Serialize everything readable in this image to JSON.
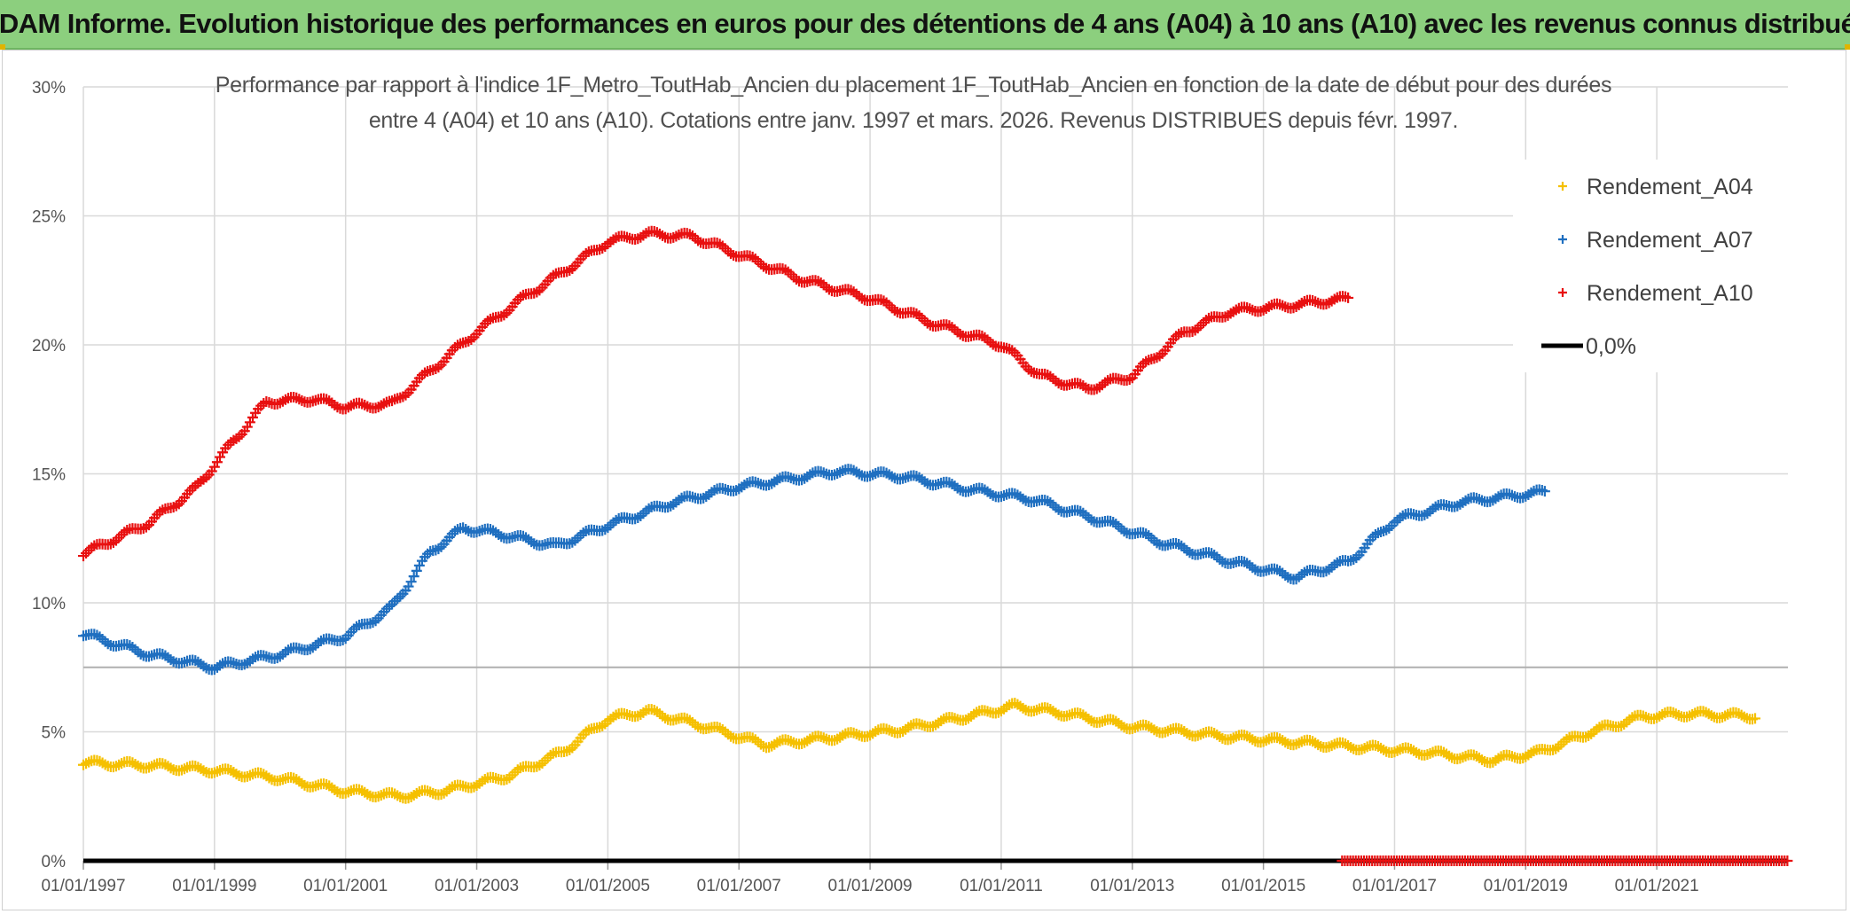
{
  "banner": {
    "title": "ADAM Informe. Evolution historique des performances en euros pour des détentions de 4 ans (A04) à 10 ans (A10) avec les revenus connus distribués"
  },
  "chart_data": {
    "type": "scatter",
    "title_line1": "Performance par rapport à l'indice 1F_Metro_ToutHab_Ancien  du placement 1F_ToutHab_Ancien en fonction de la date de début pour des durées",
    "title_line2": "entre 4 (A04) et 10 ans (A10). Cotations entre janv. 1997 et mars. 2026. Revenus DISTRIBUES depuis févr. 1997.",
    "xlabel": "",
    "ylabel": "",
    "xlim": [
      1997.0,
      2023.0
    ],
    "ylim": [
      0,
      30
    ],
    "y_ticks": [
      "0%",
      "5%",
      "10%",
      "15%",
      "20%",
      "25%",
      "30%"
    ],
    "x_tick_years": [
      1997,
      1999,
      2001,
      2003,
      2005,
      2007,
      2009,
      2011,
      2013,
      2015,
      2017,
      2019,
      2021
    ],
    "x_tick_labels": [
      "01/01/1997",
      "01/01/1999",
      "01/01/2001",
      "01/01/2003",
      "01/01/2005",
      "01/01/2007",
      "01/01/2009",
      "01/01/2011",
      "01/01/2013",
      "01/01/2015",
      "01/01/2017",
      "01/01/2019",
      "01/01/2021"
    ],
    "reference_line_value": 7.5,
    "legend_position": "top-right",
    "series": [
      {
        "name": "Rendement_A04",
        "color": "#f5c000",
        "marker": "+",
        "x": [
          1997.0,
          1998.0,
          1999.0,
          2000.0,
          2001.0,
          2001.8,
          2002.5,
          2003.5,
          2004.3,
          2005.0,
          2005.6,
          2006.5,
          2007.4,
          2008.5,
          2009.5,
          2010.5,
          2011.2,
          2012.0,
          2013.0,
          2014.5,
          2016.0,
          2017.5,
          2018.5,
          2019.2,
          2020.0,
          2020.8,
          2021.5,
          2022.5
        ],
        "values": [
          3.8,
          3.7,
          3.5,
          3.2,
          2.7,
          2.5,
          2.7,
          3.3,
          4.2,
          5.5,
          5.8,
          5.2,
          4.5,
          4.8,
          5.1,
          5.6,
          6.0,
          5.7,
          5.2,
          4.8,
          4.5,
          4.2,
          3.9,
          4.2,
          5.0,
          5.6,
          5.7,
          5.6
        ]
      },
      {
        "name": "Rendement_A07",
        "color": "#1f6fc0",
        "marker": "+",
        "x": [
          1997.0,
          1998.0,
          1999.0,
          2000.0,
          2001.0,
          2001.7,
          2002.3,
          2002.8,
          2003.3,
          2004.2,
          2005.0,
          2006.0,
          2007.0,
          2008.5,
          2009.5,
          2010.5,
          2011.5,
          2012.5,
          2013.5,
          2014.5,
          2015.5,
          2016.3,
          2017.0,
          2018.0,
          2019.3
        ],
        "values": [
          8.8,
          8.0,
          7.5,
          8.0,
          8.7,
          9.8,
          12.0,
          12.9,
          12.7,
          12.2,
          13.0,
          13.9,
          14.5,
          15.1,
          14.9,
          14.4,
          14.0,
          13.2,
          12.3,
          11.6,
          11.0,
          11.6,
          13.2,
          13.9,
          14.3
        ]
      },
      {
        "name": "Rendement_A10",
        "color": "#e81010",
        "marker": "+",
        "x": [
          1997.0,
          1997.5,
          1998.0,
          1998.7,
          1999.3,
          1999.8,
          2000.5,
          2001.0,
          2001.7,
          2002.3,
          2003.0,
          2003.7,
          2004.3,
          2005.0,
          2005.6,
          2006.3,
          2007.0,
          2008.0,
          2009.0,
          2010.0,
          2011.0,
          2011.6,
          2012.3,
          2013.0,
          2013.8,
          2014.5,
          2015.3,
          2016.3
        ],
        "values": [
          11.9,
          12.5,
          13.1,
          14.4,
          16.3,
          17.8,
          17.9,
          17.6,
          17.7,
          19.0,
          20.5,
          21.8,
          22.8,
          24.0,
          24.3,
          24.2,
          23.5,
          22.5,
          21.8,
          20.8,
          20.0,
          18.8,
          18.3,
          18.8,
          20.5,
          21.3,
          21.5,
          21.8
        ]
      },
      {
        "name": "0,0%",
        "color": "#000000",
        "marker": "line",
        "x": [
          1997.0,
          2023.0
        ],
        "values": [
          0,
          0
        ]
      }
    ],
    "zero_markers": {
      "name": "Rendement_A10 (0%)",
      "color": "#e81010",
      "x_range": [
        2016.2,
        2023.0
      ],
      "value": 0
    },
    "legend": [
      "Rendement_A04",
      "Rendement_A07",
      "Rendement_A10",
      "0,0%"
    ]
  }
}
